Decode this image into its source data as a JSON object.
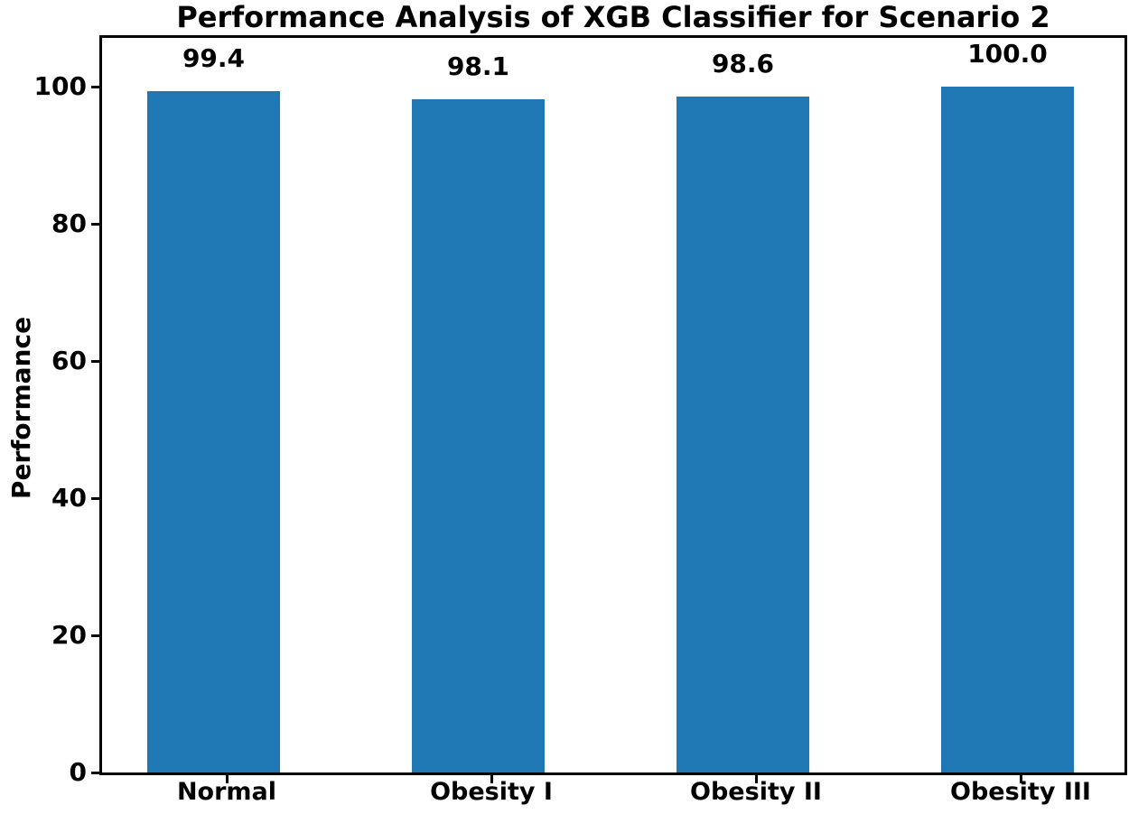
{
  "figure": {
    "title": "Performance Analysis of XGB Classifier for Scenario 2",
    "ylabel": "Performance"
  },
  "chart_data": {
    "type": "bar",
    "title": "Performance Analysis of XGB Classifier for Scenario 2",
    "xlabel": "",
    "ylabel": "Performance",
    "categories": [
      "Normal",
      "Obesity I",
      "Obesity II",
      "Obesity III"
    ],
    "values": [
      99.4,
      98.1,
      98.6,
      100.0
    ],
    "value_labels": [
      "99.4",
      "98.1",
      "98.6",
      "100.0"
    ],
    "ylim": [
      0,
      100
    ],
    "yticks": [
      0,
      20,
      40,
      60,
      80,
      100
    ],
    "ytick_labels": [
      "0",
      "20",
      "40",
      "60",
      "80",
      "100"
    ],
    "bar_color": "#1f77b4",
    "text_color": "#000000",
    "grid": false,
    "legend_position": "none"
  }
}
